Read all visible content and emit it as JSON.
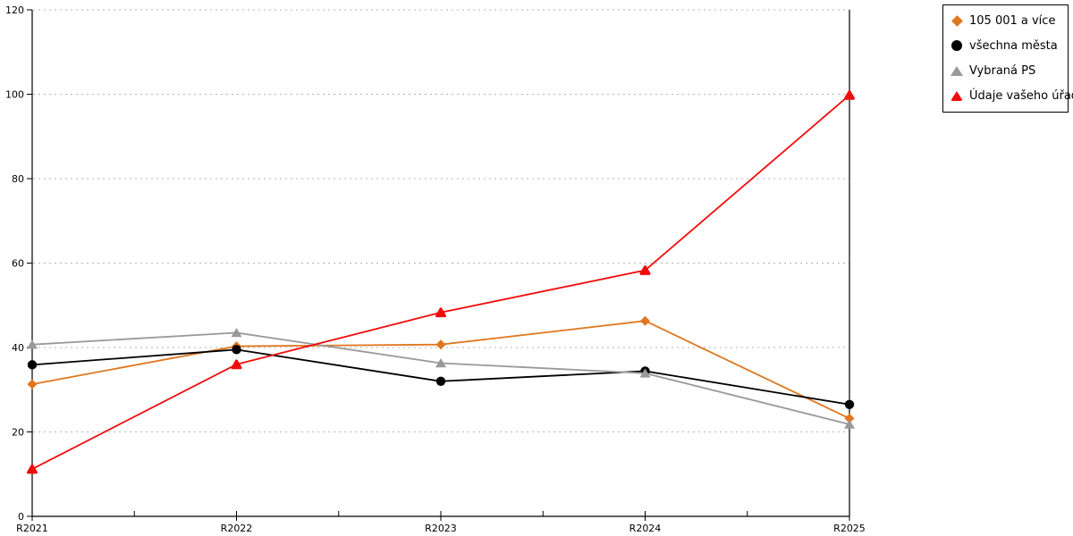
{
  "chart_data": {
    "type": "line",
    "title": "",
    "xlabel": "",
    "ylabel": "",
    "categories": [
      "R2021",
      "R2022",
      "R2023",
      "R2024",
      "R2025"
    ],
    "series": [
      {
        "name": "105 001 a více",
        "color": "#e0761e",
        "marker": "diamond",
        "values": [
          31.3,
          40.3,
          40.7,
          46.3,
          23.2
        ]
      },
      {
        "name": "všechna města",
        "color": "#000000",
        "marker": "circle",
        "values": [
          35.9,
          39.5,
          32.0,
          34.4,
          26.5
        ]
      },
      {
        "name": "Vybraná PS",
        "color": "#999999",
        "marker": "triangle",
        "values": [
          40.7,
          43.5,
          36.3,
          33.9,
          21.8
        ]
      },
      {
        "name": "Údaje vašeho úřadu",
        "color": "#f00c0c",
        "marker": "triangle-rounded",
        "values": [
          11.2,
          36.0,
          48.3,
          58.3,
          99.8
        ]
      }
    ],
    "ylim": [
      0,
      120
    ],
    "ytick_step": 20,
    "grid": "horizontal-dotted",
    "gridline_color": "#b3b3b3",
    "axis_color": "#000000",
    "legend_position": "top-right"
  }
}
